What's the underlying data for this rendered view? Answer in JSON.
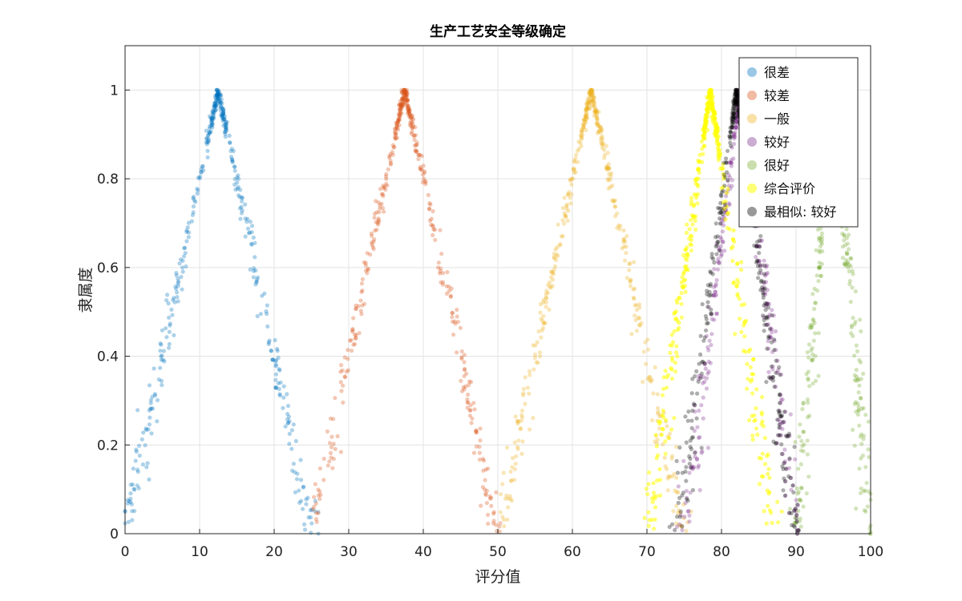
{
  "chart_data": {
    "type": "scatter",
    "title": "生产工艺安全等级确定",
    "xlabel": "评分值",
    "ylabel": "隶属度",
    "xlim": [
      0,
      100
    ],
    "ylim": [
      0,
      1.1
    ],
    "xticks": [
      0,
      10,
      20,
      30,
      40,
      50,
      60,
      70,
      80,
      90,
      100
    ],
    "yticks": [
      0,
      0.2,
      0.4,
      0.6,
      0.8,
      1
    ],
    "xtick_labels": [
      "0",
      "10",
      "20",
      "30",
      "40",
      "50",
      "60",
      "70",
      "80",
      "90",
      "100"
    ],
    "ytick_labels": [
      "0",
      "0.2",
      "0.4",
      "0.6",
      "0.8",
      "1"
    ],
    "grid": true,
    "legend_position": "top-right",
    "series": [
      {
        "name": "很差",
        "color": "#0072BD",
        "shape": "triangular-membership",
        "left_foot": 0,
        "peak": 12.5,
        "right_foot": 25,
        "points_y": [
          0.02,
          0.12,
          0.25,
          0.4,
          0.55,
          0.7,
          0.82,
          0.92,
          1,
          0.92,
          0.82,
          0.7,
          0.55,
          0.4,
          0.25,
          0.12,
          0.02
        ]
      },
      {
        "name": "较差",
        "color": "#D95319",
        "shape": "triangular-membership",
        "left_foot": 25,
        "peak": 37.5,
        "right_foot": 50,
        "points_y": [
          0.02,
          0.12,
          0.25,
          0.4,
          0.55,
          0.7,
          0.82,
          0.92,
          1,
          0.92,
          0.82,
          0.7,
          0.55,
          0.4,
          0.25,
          0.12,
          0.02
        ]
      },
      {
        "name": "一般",
        "color": "#EDB120",
        "shape": "triangular-membership",
        "left_foot": 50,
        "peak": 62.5,
        "right_foot": 75,
        "points_y": [
          0.02,
          0.12,
          0.25,
          0.4,
          0.55,
          0.7,
          0.82,
          0.92,
          1,
          0.92,
          0.82,
          0.7,
          0.55,
          0.4,
          0.25,
          0.12,
          0.02
        ]
      },
      {
        "name": "较好",
        "color": "#7E2F8E",
        "shape": "triangular-membership",
        "left_foot": 75,
        "peak": 82.5,
        "right_foot": 90,
        "points_y": [
          0.02,
          0.12,
          0.25,
          0.4,
          0.55,
          0.7,
          0.82,
          0.92,
          1,
          0.92,
          0.82,
          0.7,
          0.55,
          0.4,
          0.25,
          0.12,
          0.02
        ]
      },
      {
        "name": "很好",
        "color": "#77AC30",
        "shape": "triangular-membership",
        "left_foot": 90,
        "peak": 95,
        "right_foot": 100,
        "points_y": [
          0.02,
          0.12,
          0.25,
          0.4,
          0.55,
          0.7,
          0.82,
          0.92,
          1,
          0.92,
          0.82,
          0.7,
          0.55,
          0.4,
          0.25,
          0.12,
          0.02
        ]
      },
      {
        "name": "综合评价",
        "color": "#FFFF00",
        "shape": "triangular-membership",
        "left_foot": 70,
        "peak": 78.5,
        "right_foot": 87,
        "points_y": [
          0.02,
          0.12,
          0.25,
          0.4,
          0.55,
          0.7,
          0.82,
          0.92,
          1,
          0.92,
          0.82,
          0.7,
          0.55,
          0.4,
          0.25,
          0.12,
          0.02
        ]
      },
      {
        "name": "最相似: 较好",
        "color": "#000000",
        "shape": "triangular-membership",
        "left_foot": 74,
        "peak": 82,
        "right_foot": 90,
        "points_y": [
          0.02,
          0.12,
          0.25,
          0.4,
          0.55,
          0.7,
          0.82,
          0.92,
          1,
          0.92,
          0.82,
          0.7,
          0.55,
          0.4,
          0.25,
          0.12,
          0.02
        ]
      }
    ]
  }
}
